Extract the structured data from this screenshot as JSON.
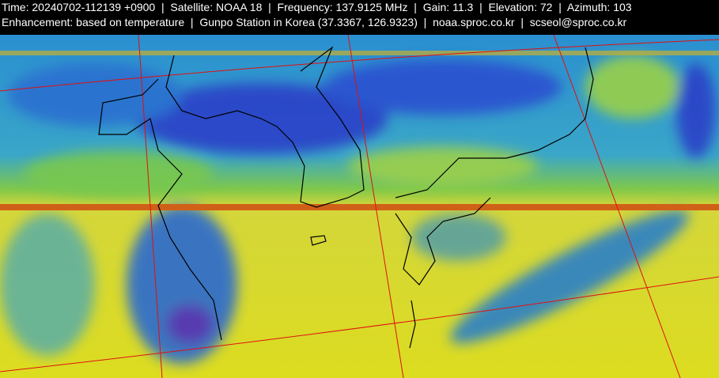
{
  "header": {
    "lines": [
      "Time: 20240702-112139 +0900  |  Satellite: NOAA 18  |  Frequency: 137.9125 MHz  |  Gain: 11.3  |  Elevation: 72  |  Azimuth: 103",
      "Enhancement: based on temperature  |  Gunpo Station in Korea (37.3367, 126.9323)  |  noaa.sproc.co.kr  |  scseol@sproc.co.kr"
    ]
  }
}
